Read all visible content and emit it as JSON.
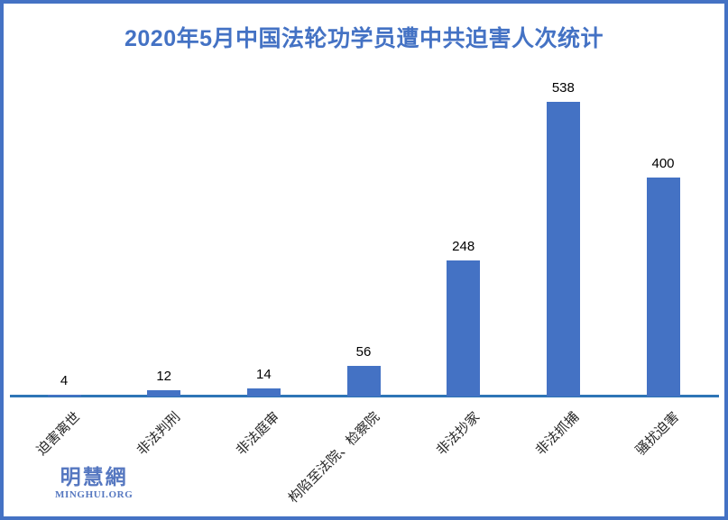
{
  "title": "2020年5月中国法轮功学员遭中共迫害人次统计",
  "chart_data": {
    "type": "bar",
    "title": "2020年5月中国法轮功学员遭中共迫害人次统计",
    "categories": [
      "迫害离世",
      "非法判刑",
      "非法庭审",
      "构陷至法院、检察院",
      "非法抄家",
      "非法抓捕",
      "骚扰迫害"
    ],
    "values": [
      4,
      12,
      14,
      56,
      248,
      538,
      400
    ],
    "xlabel": "",
    "ylabel": "",
    "grid": false,
    "legend": false,
    "y_axis_visible": false,
    "data_labels": true,
    "category_label_rotation_deg": -45
  },
  "colors": {
    "accent": "#4472C4",
    "frame_border": "#4472C4",
    "title_text": "#4472C4",
    "bar_fill": "#4472C4",
    "axis_line": "#2E75B6",
    "value_label_text": "#000000",
    "category_label_text": "#262626",
    "logo_text": "#5577C0"
  },
  "logo": {
    "text": "明慧網",
    "subtext": "MINGHUI.ORG"
  }
}
